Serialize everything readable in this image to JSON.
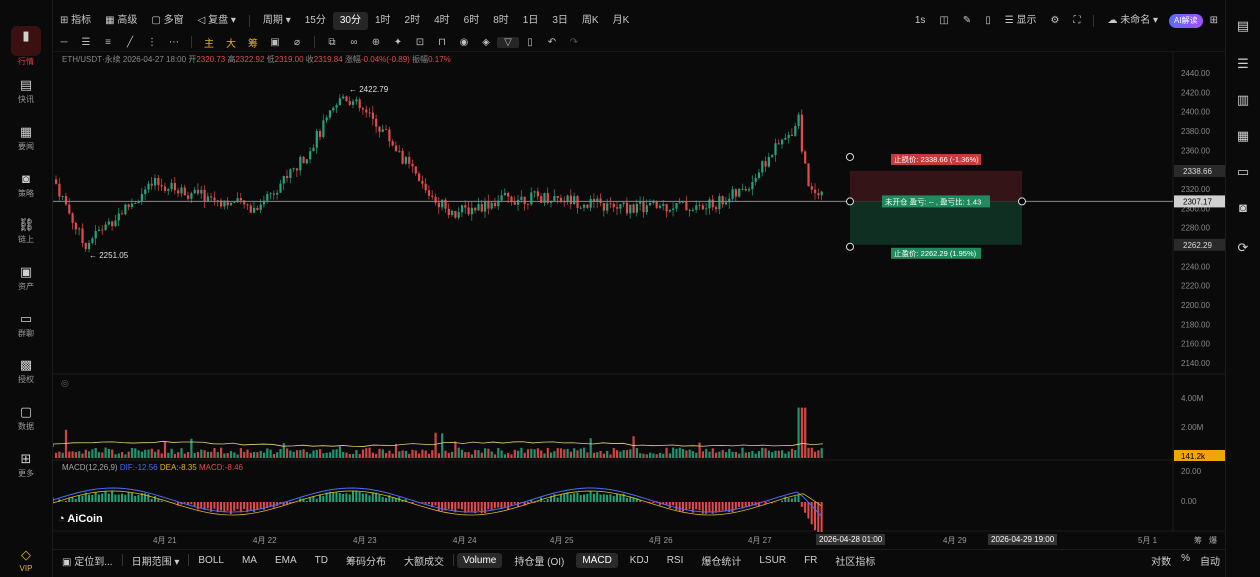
{
  "sidebar": {
    "items": [
      {
        "label": "行情",
        "icon": "bar-chart-icon",
        "active": true
      },
      {
        "label": "快讯",
        "icon": "news-icon"
      },
      {
        "label": "要闻",
        "icon": "document-icon"
      },
      {
        "label": "策略",
        "icon": "robot-icon"
      },
      {
        "label": "链上",
        "icon": "chain-icon"
      },
      {
        "label": "资产",
        "icon": "wallet-icon"
      },
      {
        "label": "群聊",
        "icon": "chat-icon"
      },
      {
        "label": "授权",
        "icon": "key-icon"
      },
      {
        "label": "数据",
        "icon": "monitor-icon"
      },
      {
        "label": "更多",
        "icon": "grid-icon"
      },
      {
        "label": "VIP",
        "icon": "diamond-icon"
      }
    ]
  },
  "toolbar": {
    "indicators": "指标",
    "advanced": "高级",
    "multi_window": "多窗",
    "replay": "复盘",
    "period": "周期",
    "intervals": [
      "15分",
      "30分",
      "1时",
      "2时",
      "4时",
      "6时",
      "8时",
      "1日",
      "3日",
      "周K",
      "月K"
    ],
    "active_interval": "30分",
    "right_interval": "1s",
    "display": "显示",
    "unnamed": "未命名",
    "ai": "AI解读"
  },
  "draw_tools": {
    "main": "主",
    "big": "大",
    "chips": "筹"
  },
  "ohlc": {
    "symbol": "ETH/USDT·永续",
    "time": "2026-04-27 18:00",
    "open_label": "开",
    "open": "2320.73",
    "high_label": "高",
    "high": "2322.92",
    "low_label": "低",
    "low": "2319.00",
    "close_label": "收",
    "close": "2319.84",
    "change_label": "涨幅",
    "change": "-0.04%(-0.89)",
    "amplitude_label": "振幅",
    "amplitude": "0.17%"
  },
  "price_axis": [
    "2440.00",
    "2420.00",
    "2400.00",
    "2380.00",
    "2360.00",
    "2340.00",
    "2320.00",
    "2300.00",
    "2280.00",
    "2260.00",
    "2240.00",
    "2220.00",
    "2200.00",
    "2180.00",
    "2160.00",
    "2140.00"
  ],
  "annotations": {
    "high": "← 2422.79",
    "low": "← 2251.05"
  },
  "position_tool": {
    "stop_loss": "止损价: 2338.66 (-1.36%)",
    "take_profit": "止盈价: 2262.29 (1.95%)",
    "summary": "未开仓  盈亏: -- , 盈亏比: 1.43",
    "stop_price": "2338.66",
    "current_price": "2307.17",
    "target_price": "2262.29"
  },
  "volume_axis": [
    "4.00M",
    "2.00M"
  ],
  "volume_value": "141.2k",
  "macd": {
    "label": "MACD(12,26,9)",
    "dif": "DIF:-12.56",
    "dea": "DEA:-8.35",
    "macd": "MACD:-8.46",
    "axis": [
      "20.00",
      "0.00"
    ]
  },
  "logo": "AiCoin",
  "time_axis": {
    "labels": [
      "4月 21",
      "4月 22",
      "4月 23",
      "4月 24",
      "4月 25",
      "4月 26",
      "4月 27",
      "4月 29",
      "5月 1"
    ],
    "crosshair_start": "2026-04-28 01:00",
    "crosshair_end": "2026-04-29 19:00"
  },
  "side_labels": {
    "chips": "筹",
    "burst": "爆"
  },
  "bottom": {
    "locate": "定位到...",
    "range": "日期范围",
    "tabs": [
      "BOLL",
      "MA",
      "EMA",
      "TD",
      "筹码分布",
      "大额成交",
      "Volume",
      "持仓量 (OI)",
      "MACD",
      "KDJ",
      "RSI",
      "爆仓统计",
      "LSUR",
      "FR",
      "社区指标"
    ],
    "active_tabs": [
      "Volume",
      "MACD"
    ],
    "log": "对数",
    "percent": "%",
    "auto": "自动"
  },
  "colors": {
    "up": "#26a17b",
    "down": "#e24b4b",
    "accent": "#f0a500"
  }
}
